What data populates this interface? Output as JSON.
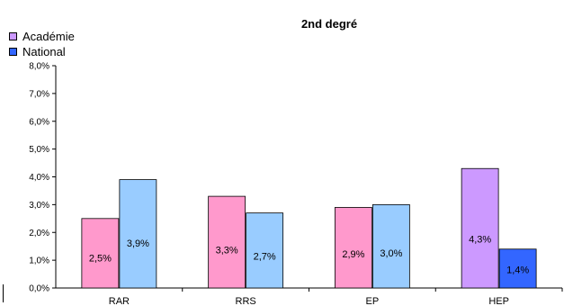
{
  "chart_data": {
    "type": "bar",
    "title": "2nd degré",
    "categories": [
      "RAR",
      "RRS",
      "EP",
      "HEP"
    ],
    "series": [
      {
        "name": "Académie",
        "values": [
          2.5,
          3.3,
          2.9,
          4.3
        ],
        "labels": [
          "2,5%",
          "3,3%",
          "2,9%",
          "4,3%"
        ]
      },
      {
        "name": "National",
        "values": [
          3.9,
          2.7,
          3.0,
          1.4
        ],
        "labels": [
          "3,9%",
          "2,7%",
          "3,0%",
          "1,4%"
        ]
      }
    ],
    "bar_colors": [
      [
        "#ff99cc",
        "#ff99cc",
        "#ff99cc",
        "#cc99ff"
      ],
      [
        "#99ccff",
        "#99ccff",
        "#99ccff",
        "#3366ff"
      ]
    ],
    "legend_colors": [
      "#cc99ff",
      "#3366ff"
    ],
    "ylim": [
      0,
      8
    ],
    "yticks": [
      "0,0%",
      "1,0%",
      "2,0%",
      "3,0%",
      "4,0%",
      "5,0%",
      "6,0%",
      "7,0%",
      "8,0%"
    ],
    "grid": false,
    "legend_position": "top-left"
  }
}
